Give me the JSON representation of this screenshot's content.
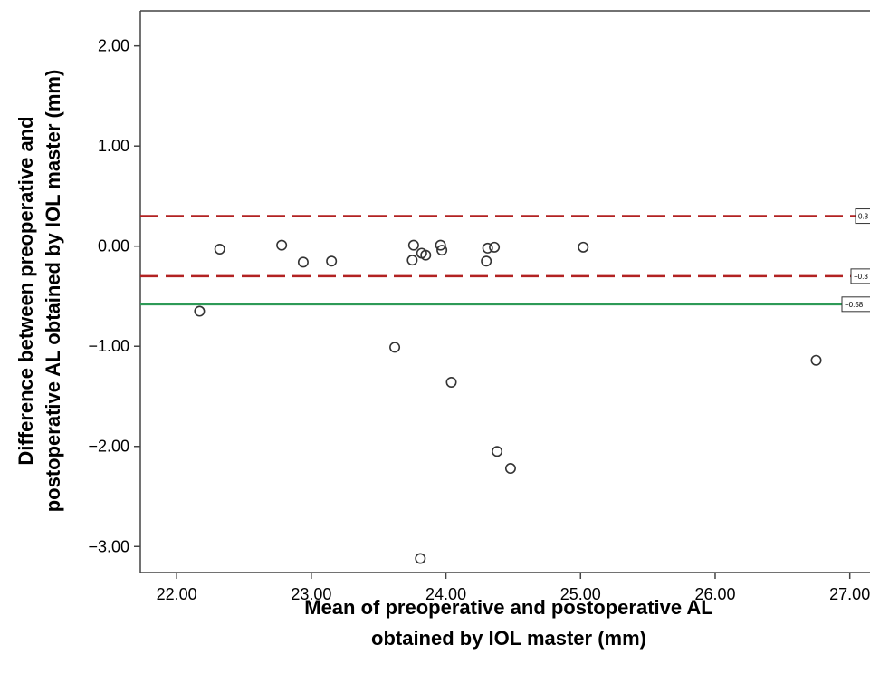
{
  "chart_data": {
    "type": "scatter",
    "title": "",
    "xlabel_lines": [
      "Mean of preoperative and postoperative AL",
      "obtained by IOL master (mm)"
    ],
    "ylabel_lines": [
      "Difference between preoperative and",
      "postoperative AL obtained by IOL master (mm)"
    ],
    "xlim": [
      21.73,
      27.15
    ],
    "ylim": [
      -3.26,
      2.35
    ],
    "xticks": [
      22,
      23,
      24,
      25,
      26,
      27
    ],
    "xtick_labels": [
      "22.00",
      "23.00",
      "24.00",
      "25.00",
      "26.00",
      "27.00"
    ],
    "yticks": [
      2,
      1,
      0,
      -1,
      -2,
      -3
    ],
    "ytick_labels": [
      "2.00",
      "1.00",
      "0.00",
      "−1.00",
      "−2.00",
      "−3.00"
    ],
    "grid": false,
    "series": [
      {
        "marker": "open-circle",
        "points": [
          {
            "x": 22.17,
            "y": -0.65
          },
          {
            "x": 22.32,
            "y": -0.03
          },
          {
            "x": 22.78,
            "y": 0.01
          },
          {
            "x": 22.94,
            "y": -0.16
          },
          {
            "x": 23.15,
            "y": -0.15
          },
          {
            "x": 23.62,
            "y": -1.01
          },
          {
            "x": 23.75,
            "y": -0.14
          },
          {
            "x": 23.76,
            "y": 0.01
          },
          {
            "x": 23.81,
            "y": -3.12
          },
          {
            "x": 23.82,
            "y": -0.07
          },
          {
            "x": 23.85,
            "y": -0.09
          },
          {
            "x": 23.96,
            "y": 0.01
          },
          {
            "x": 23.97,
            "y": -0.04
          },
          {
            "x": 24.04,
            "y": -1.36
          },
          {
            "x": 24.3,
            "y": -0.15
          },
          {
            "x": 24.31,
            "y": -0.02
          },
          {
            "x": 24.36,
            "y": -0.01
          },
          {
            "x": 24.38,
            "y": -2.05
          },
          {
            "x": 24.48,
            "y": -2.22
          },
          {
            "x": 25.02,
            "y": -0.01
          },
          {
            "x": 26.75,
            "y": -1.14
          }
        ]
      }
    ],
    "reference_lines": [
      {
        "y": 0.3,
        "style": "dashed",
        "color": "#b22222",
        "label": "0.3"
      },
      {
        "y": -0.3,
        "style": "dashed",
        "color": "#b22222",
        "label": "−0.3"
      },
      {
        "y": -0.58,
        "style": "solid",
        "color": "#2e9a57",
        "label": "−0.58"
      }
    ]
  }
}
